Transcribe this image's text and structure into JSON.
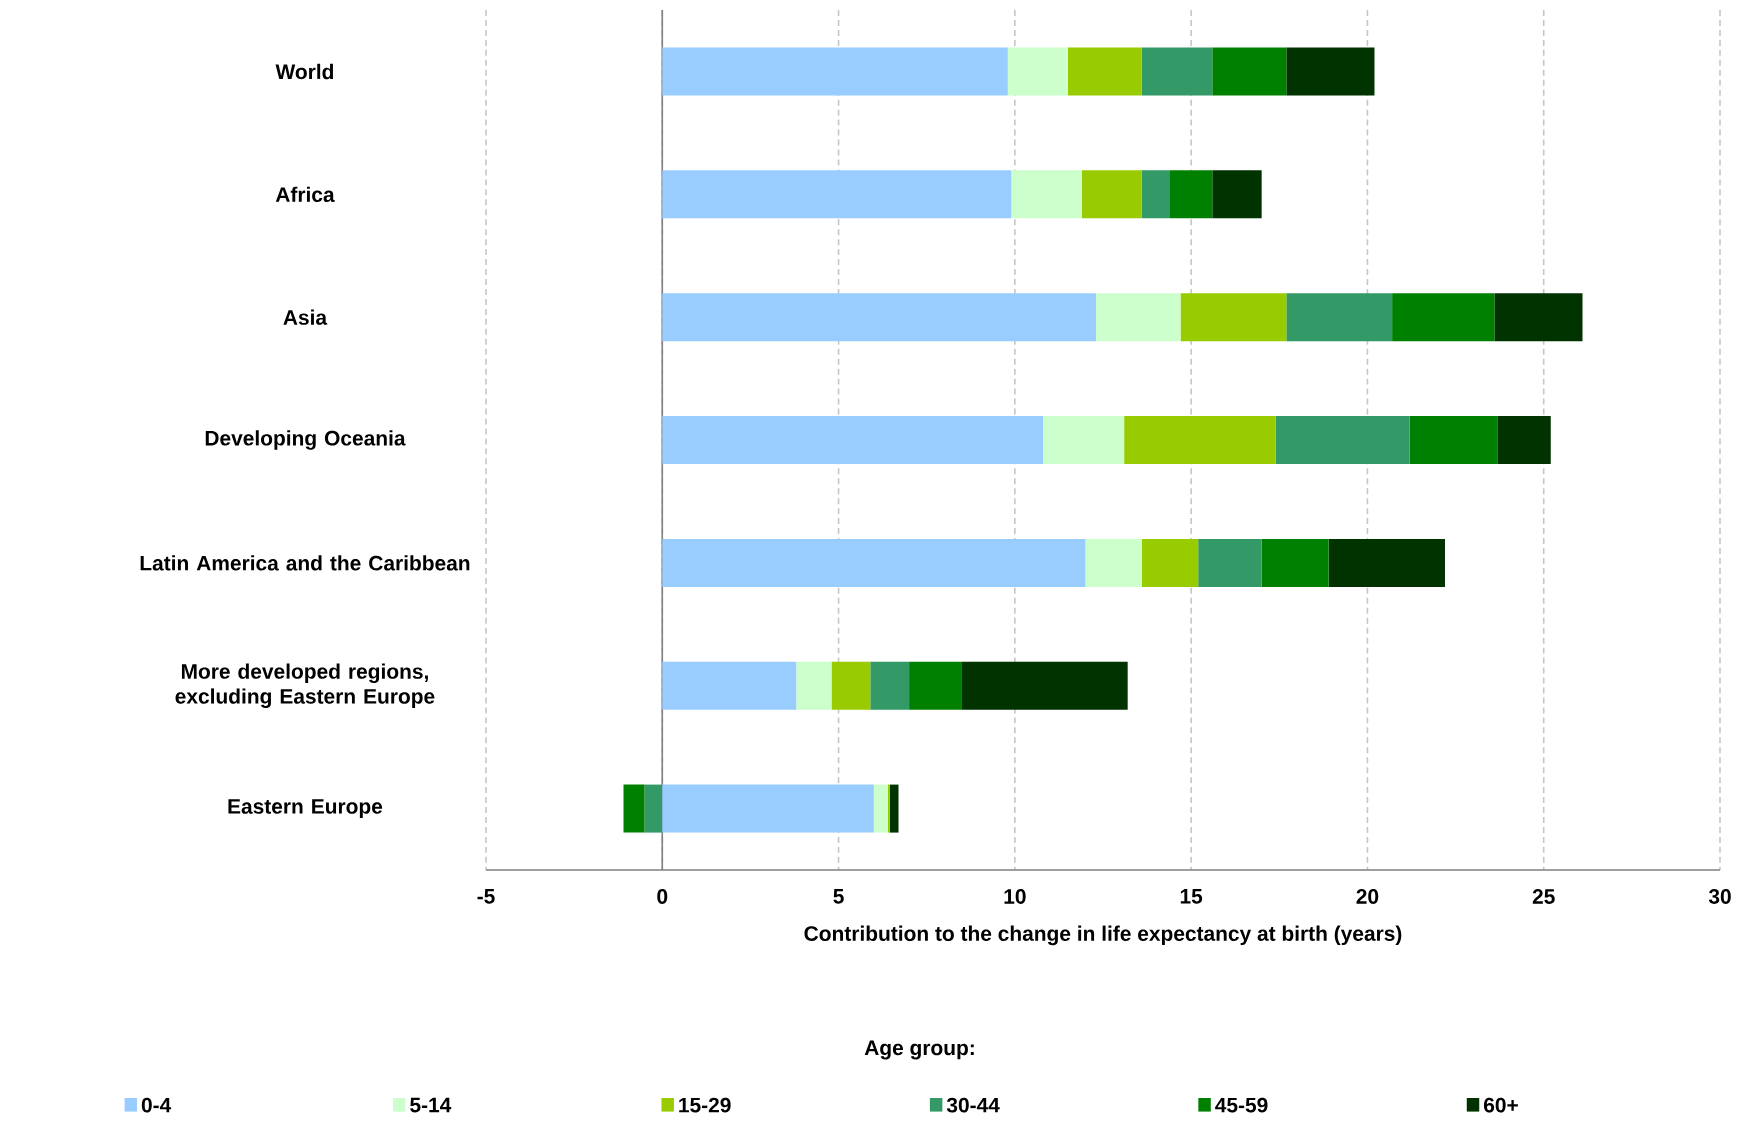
{
  "chart_data": {
    "type": "bar",
    "orientation": "horizontal",
    "stacked": true,
    "categories": [
      "World",
      "Africa",
      "Asia",
      "Developing Oceania",
      "Latin America and the Caribbean",
      "More developed regions, excluding Eastern Europe",
      "Eastern Europe"
    ],
    "series": [
      {
        "name": "0-4",
        "color": "#99ccff",
        "values": [
          9.8,
          9.9,
          12.3,
          10.8,
          12.0,
          3.8,
          6.0
        ]
      },
      {
        "name": "5-14",
        "color": "#ccffcc",
        "values": [
          1.7,
          2.0,
          2.4,
          2.3,
          1.6,
          1.0,
          0.4
        ]
      },
      {
        "name": "15-29",
        "color": "#99cc00",
        "values": [
          2.1,
          1.7,
          3.0,
          4.3,
          1.6,
          1.1,
          0.05
        ]
      },
      {
        "name": "30-44",
        "color": "#339966",
        "values": [
          2.0,
          0.8,
          3.0,
          3.8,
          1.8,
          1.1,
          -0.5
        ]
      },
      {
        "name": "45-59",
        "color": "#008000",
        "values": [
          2.1,
          1.2,
          2.9,
          2.5,
          1.9,
          1.5,
          -0.6
        ]
      },
      {
        "name": "60+",
        "color": "#003300",
        "values": [
          2.5,
          1.4,
          2.5,
          1.5,
          3.3,
          4.7,
          0.25
        ]
      }
    ],
    "xlim": [
      -5,
      30
    ],
    "xticks": [
      -5,
      0,
      5,
      10,
      15,
      20,
      25,
      30
    ],
    "xlabel": "Contribution to the change in life expectancy at birth (years)",
    "legend_title": "Age group:",
    "legend": "bottom",
    "grid": "x"
  }
}
